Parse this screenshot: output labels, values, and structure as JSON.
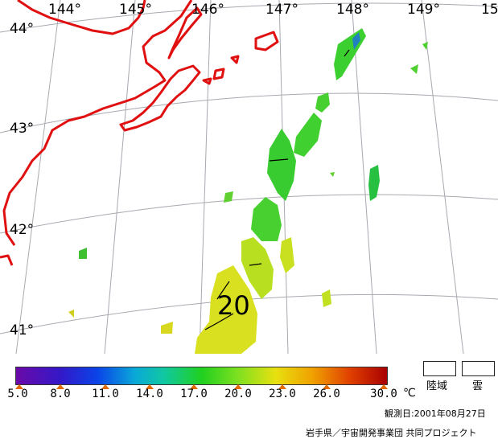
{
  "map": {
    "longitude_labels": [
      "144°",
      "145°",
      "146°",
      "147°",
      "148°",
      "149°",
      "15"
    ],
    "latitude_labels": [
      "44°",
      "43°",
      "42°",
      "41°"
    ],
    "contour_label": "20",
    "colors": {
      "coastline": "#e01010",
      "grid": "#a0a0a8",
      "sea_surface_green": "#40d030",
      "sea_surface_yellow": "#d8e020"
    }
  },
  "legend": {
    "tick_labels": [
      "5.0",
      "8.0",
      "11.0",
      "14.0",
      "17.0",
      "20.0",
      "23.0",
      "26.0",
      "30.0"
    ],
    "unit": "℃",
    "land_label": "陸域",
    "cloud_label": "雲"
  },
  "footer": {
    "observation_date": "観測日:2001年08月27日",
    "credit": "岩手県／宇宙開発事業団 共同プロジェクト"
  }
}
